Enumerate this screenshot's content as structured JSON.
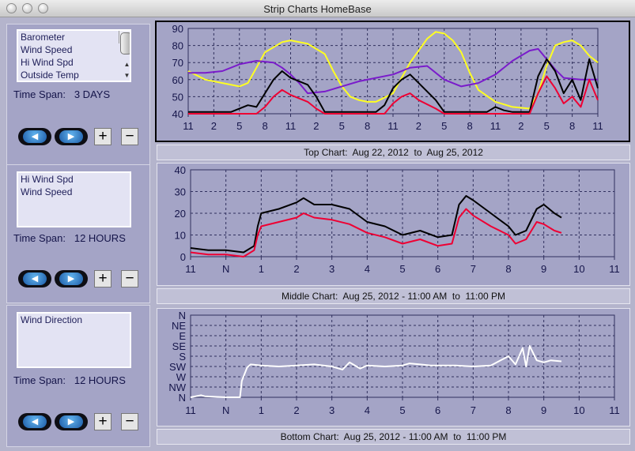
{
  "window": {
    "title": "Strip Charts   HomeBase"
  },
  "panels": [
    {
      "list": [
        "Barometer",
        "Wind Speed",
        "Hi Wind Spd",
        "Outside Temp"
      ],
      "timespan_label": "Time Span:",
      "timespan_value": "3 DAYS",
      "caption": "Top Chart:  Aug 22, 2012  to  Aug 25, 2012"
    },
    {
      "list": [
        "Hi Wind Spd",
        "Wind Speed"
      ],
      "timespan_label": "Time Span:",
      "timespan_value": "12 HOURS",
      "caption": "Middle Chart:  Aug 25, 2012 - 11:00 AM  to  11:00 PM"
    },
    {
      "list": [
        "Wind Direction"
      ],
      "timespan_label": "Time Span:",
      "timespan_value": "12 HOURS",
      "caption": "Bottom Chart:  Aug 25, 2012 - 11:00 AM  to  11:00 PM"
    }
  ],
  "buttons": {
    "back": "◀",
    "forward": "▶",
    "zoom_in": "+",
    "zoom_out": "−"
  },
  "colors": {
    "black_series": "#000000",
    "red_series": "#ee0033",
    "purple_series": "#7a1ccb",
    "yellow_series": "#ffff22",
    "white_series": "#ffffff",
    "grid": "#30305e",
    "panel": "#a4a4c6"
  },
  "chart_data": [
    {
      "type": "line",
      "ylim": [
        40,
        90
      ],
      "y_ticks": [
        "40",
        "50",
        "60",
        "70",
        "80",
        "90"
      ],
      "x_ticks": [
        "11",
        "2",
        "5",
        "8",
        "11",
        "2",
        "5",
        "8",
        "11",
        "2",
        "5",
        "8",
        "11",
        "2",
        "5",
        "8",
        "11"
      ],
      "grid": true,
      "series": [
        {
          "color": "#ffff22",
          "x": [
            0,
            2,
            4,
            6,
            7,
            8,
            9,
            10,
            11,
            12,
            14,
            16,
            17,
            18,
            19,
            20,
            21,
            22,
            24,
            26,
            28,
            29,
            30,
            31,
            32,
            33,
            34,
            36,
            38,
            40,
            41,
            42,
            43,
            44,
            45,
            46,
            47,
            48
          ],
          "y": [
            65,
            60,
            58,
            56,
            58,
            67,
            76,
            79,
            82,
            83,
            81,
            75,
            65,
            56,
            50,
            48,
            47,
            47,
            52,
            70,
            84,
            88,
            87,
            83,
            76,
            64,
            54,
            47,
            44,
            43,
            52,
            68,
            80,
            82,
            83,
            80,
            74,
            70
          ]
        },
        {
          "color": "#7a1ccb",
          "x": [
            0,
            2,
            4,
            6,
            8,
            10,
            11,
            12,
            13,
            14,
            16,
            18,
            20,
            22,
            24,
            26,
            28,
            30,
            32,
            34,
            36,
            38,
            40,
            41,
            42,
            43,
            44,
            46,
            48
          ],
          "y": [
            64,
            64,
            65,
            69,
            71,
            70,
            67,
            63,
            58,
            52,
            53,
            56,
            59,
            61,
            63,
            67,
            68,
            60,
            56,
            58,
            63,
            71,
            77,
            78,
            72,
            66,
            61,
            60,
            60
          ]
        },
        {
          "color": "#000000",
          "x": [
            0,
            5,
            7,
            8,
            9,
            10,
            11,
            12,
            14,
            15,
            16,
            22,
            23,
            24,
            25,
            26,
            27,
            29,
            30,
            35,
            36,
            37,
            38,
            40,
            41,
            42,
            43,
            44,
            45,
            46,
            47,
            48
          ],
          "y": [
            41,
            41,
            45,
            44,
            52,
            60,
            65,
            61,
            57,
            50,
            41,
            41,
            45,
            55,
            60,
            63,
            58,
            48,
            41,
            41,
            44,
            42,
            41,
            41,
            62,
            72,
            65,
            52,
            60,
            48,
            72,
            55
          ]
        },
        {
          "color": "#ee0033",
          "x": [
            0,
            8,
            9,
            10,
            11,
            12,
            14,
            15,
            16,
            23,
            24,
            25,
            26,
            27,
            29,
            30,
            40,
            41,
            42,
            43,
            44,
            45,
            46,
            47,
            48
          ],
          "y": [
            40,
            40,
            44,
            50,
            54,
            51,
            47,
            43,
            40,
            40,
            46,
            50,
            52,
            48,
            43,
            40,
            40,
            52,
            62,
            55,
            46,
            50,
            44,
            60,
            48
          ]
        }
      ]
    },
    {
      "type": "line",
      "ylim": [
        0,
        40
      ],
      "y_ticks": [
        "0",
        "10",
        "20",
        "30",
        "40"
      ],
      "x_ticks": [
        "11",
        "N",
        "1",
        "2",
        "3",
        "4",
        "5",
        "6",
        "7",
        "8",
        "9",
        "10",
        "11"
      ],
      "grid": true,
      "series": [
        {
          "color": "#000000",
          "x": [
            0,
            0.5,
            1,
            1.5,
            1.8,
            1.9,
            2,
            2.5,
            3,
            3.2,
            3.5,
            4,
            4.5,
            5,
            5.5,
            6,
            6.5,
            7,
            7.4,
            7.6,
            7.8,
            8,
            8.5,
            9,
            9.2,
            9.5,
            9.8,
            10,
            10.3,
            10.5
          ],
          "y": [
            4,
            3,
            3,
            2,
            5,
            14,
            20,
            22,
            25,
            27,
            24,
            24,
            22,
            16,
            14,
            10,
            12,
            9,
            10,
            24,
            28,
            26,
            20,
            14,
            10,
            12,
            22,
            24,
            20,
            18
          ]
        },
        {
          "color": "#ee0033",
          "x": [
            0,
            0.5,
            1,
            1.5,
            1.8,
            1.9,
            2,
            2.5,
            3,
            3.2,
            3.5,
            4,
            4.5,
            5,
            5.5,
            6,
            6.5,
            7,
            7.4,
            7.6,
            7.8,
            8,
            8.5,
            9,
            9.2,
            9.5,
            9.8,
            10,
            10.3,
            10.5
          ],
          "y": [
            2,
            1,
            1,
            0,
            3,
            10,
            14,
            16,
            18,
            20,
            18,
            17,
            15,
            11,
            9,
            6,
            8,
            5,
            6,
            18,
            22,
            19,
            14,
            10,
            6,
            8,
            16,
            15,
            12,
            11
          ]
        }
      ]
    },
    {
      "type": "line",
      "y_ticks": [
        "N",
        "NW",
        "W",
        "SW",
        "S",
        "SE",
        "E",
        "NE",
        "N"
      ],
      "x_ticks": [
        "11",
        "N",
        "1",
        "2",
        "3",
        "4",
        "5",
        "6",
        "7",
        "8",
        "9",
        "10",
        "11"
      ],
      "grid": true,
      "series": [
        {
          "color": "#ffffff",
          "x": [
            0,
            0.3,
            0.4,
            1.0,
            1.4,
            1.45,
            1.6,
            1.7,
            2.0,
            2.5,
            3.0,
            3.5,
            4.0,
            4.3,
            4.5,
            4.8,
            5.0,
            5.5,
            6.0,
            6.2,
            6.5,
            6.8,
            7.0,
            7.5,
            8.0,
            8.5,
            9.0,
            9.2,
            9.4,
            9.5,
            9.6,
            9.8,
            10.0,
            10.2,
            10.5
          ],
          "y": [
            0,
            0.2,
            0.1,
            0,
            0,
            1.6,
            2.9,
            3.2,
            3.1,
            3.0,
            3.1,
            3.2,
            3.0,
            2.7,
            3.4,
            2.8,
            3.1,
            3.0,
            3.1,
            3.3,
            3.2,
            3.1,
            3.1,
            3.1,
            3.0,
            3.1,
            4.0,
            3.2,
            4.8,
            3.0,
            5.0,
            3.6,
            3.4,
            3.6,
            3.5
          ]
        }
      ]
    }
  ]
}
